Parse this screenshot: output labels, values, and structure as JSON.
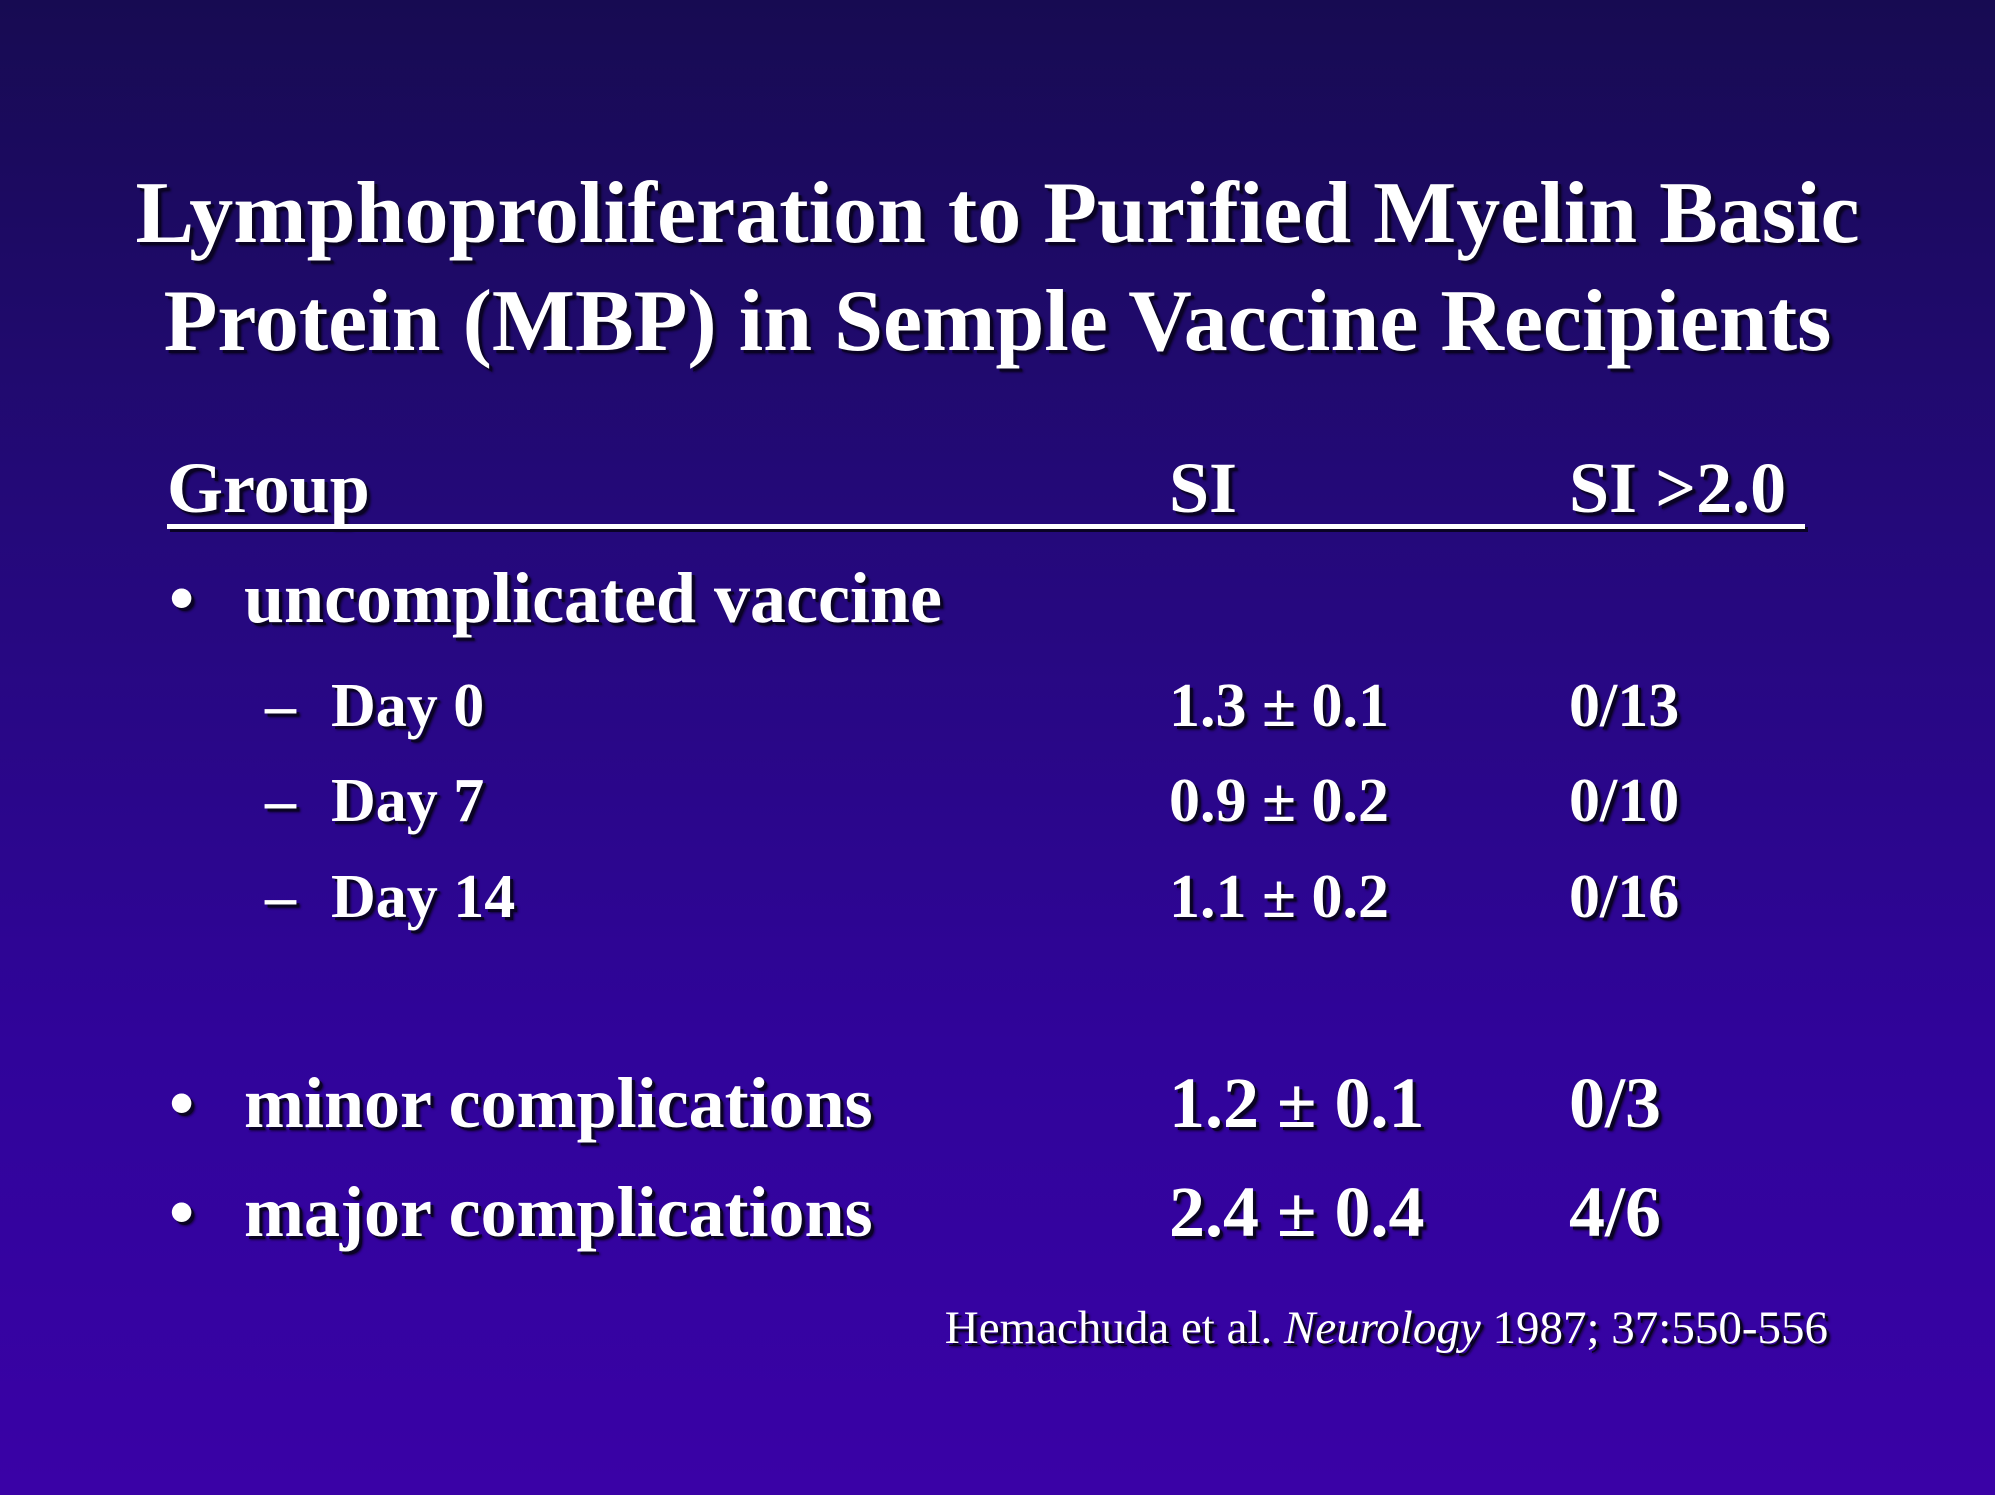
{
  "title": {
    "line1": "Lymphoproliferation to Purified Myelin Basic",
    "line2": "Protein (MBP) in Semple Vaccine Recipients"
  },
  "table": {
    "headers": {
      "group": "Group",
      "si": "SI",
      "si_threshold": "SI >2.0"
    },
    "bullet_glyph": "•",
    "dash_glyph": "–",
    "rows": [
      {
        "label": "uncomplicated vaccine",
        "si": "",
        "si_threshold": ""
      },
      {
        "label": "Day 0",
        "si": "1.3 ± 0.1",
        "si_threshold": "0/13"
      },
      {
        "label": "Day 7",
        "si": "0.9 ± 0.2",
        "si_threshold": "0/10"
      },
      {
        "label": "Day 14",
        "si": "1.1 ± 0.2",
        "si_threshold": "0/16"
      },
      {
        "label": "minor complications",
        "si": "1.2 ± 0.1",
        "si_threshold": "0/3"
      },
      {
        "label": "major complications",
        "si": "2.4 ± 0.4",
        "si_threshold": "4/6"
      }
    ]
  },
  "citation": {
    "authors": "Hemachuda et al. ",
    "journal": "Neurology",
    "details": " 1987; 37:550-556"
  },
  "colors": {
    "background_top": "#170b52",
    "background_bottom": "#3a02a6",
    "text": "#ffffff"
  }
}
